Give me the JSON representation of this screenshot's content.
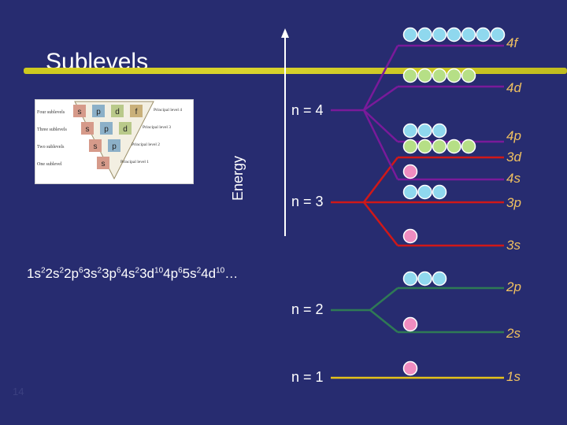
{
  "title": "Sublevels",
  "axis_label": "Energy",
  "configuration": {
    "terms": [
      {
        "base": "1s",
        "exp": "2"
      },
      {
        "base": "2s",
        "exp": "2"
      },
      {
        "base": "2p",
        "exp": "6"
      },
      {
        "base": "3s",
        "exp": "2"
      },
      {
        "base": "3p",
        "exp": "6"
      },
      {
        "base": "4s",
        "exp": "2"
      },
      {
        "base": "3d",
        "exp": "10"
      },
      {
        "base": "4p",
        "exp": "6"
      },
      {
        "base": "5s",
        "exp": "2"
      },
      {
        "base": "4d",
        "exp": "10"
      }
    ],
    "ellipsis": "…"
  },
  "levels": {
    "n4": "n = 4",
    "n3": "n = 3",
    "n2": "n = 2",
    "n1": "n = 1"
  },
  "sublevels": {
    "4f": "4f",
    "4d": "4d",
    "4p": "4p",
    "3d": "3d",
    "4s": "4s",
    "3p": "3p",
    "3s": "3s",
    "2p": "2p",
    "2s": "2s",
    "1s": "1s"
  },
  "inset": {
    "rows": [
      {
        "label": "Four sublevels",
        "letters": [
          "s",
          "p",
          "d",
          "f"
        ],
        "note": "Principal level 4"
      },
      {
        "label": "Three sublevels",
        "letters": [
          "s",
          "p",
          "d"
        ],
        "note": "Principal level 3"
      },
      {
        "label": "Two sublevels",
        "letters": [
          "s",
          "p"
        ],
        "note": "Principal level 2"
      },
      {
        "label": "One sublevel",
        "letters": [
          "s"
        ],
        "note": "Principal level 1"
      }
    ]
  },
  "slide_number": "14",
  "colors": {
    "background": "#272c70",
    "s_orbital": "#f08cc0",
    "p_orbital": "#8fd8ee",
    "d_orbital": "#b6df86",
    "f_orbital": "#8fd8ee",
    "n1_line": "#e6c21a",
    "n2_line": "#2f7a55",
    "n3_line": "#d01818",
    "n4_line": "#7a1a9a",
    "sublabel": "#f0c060"
  }
}
